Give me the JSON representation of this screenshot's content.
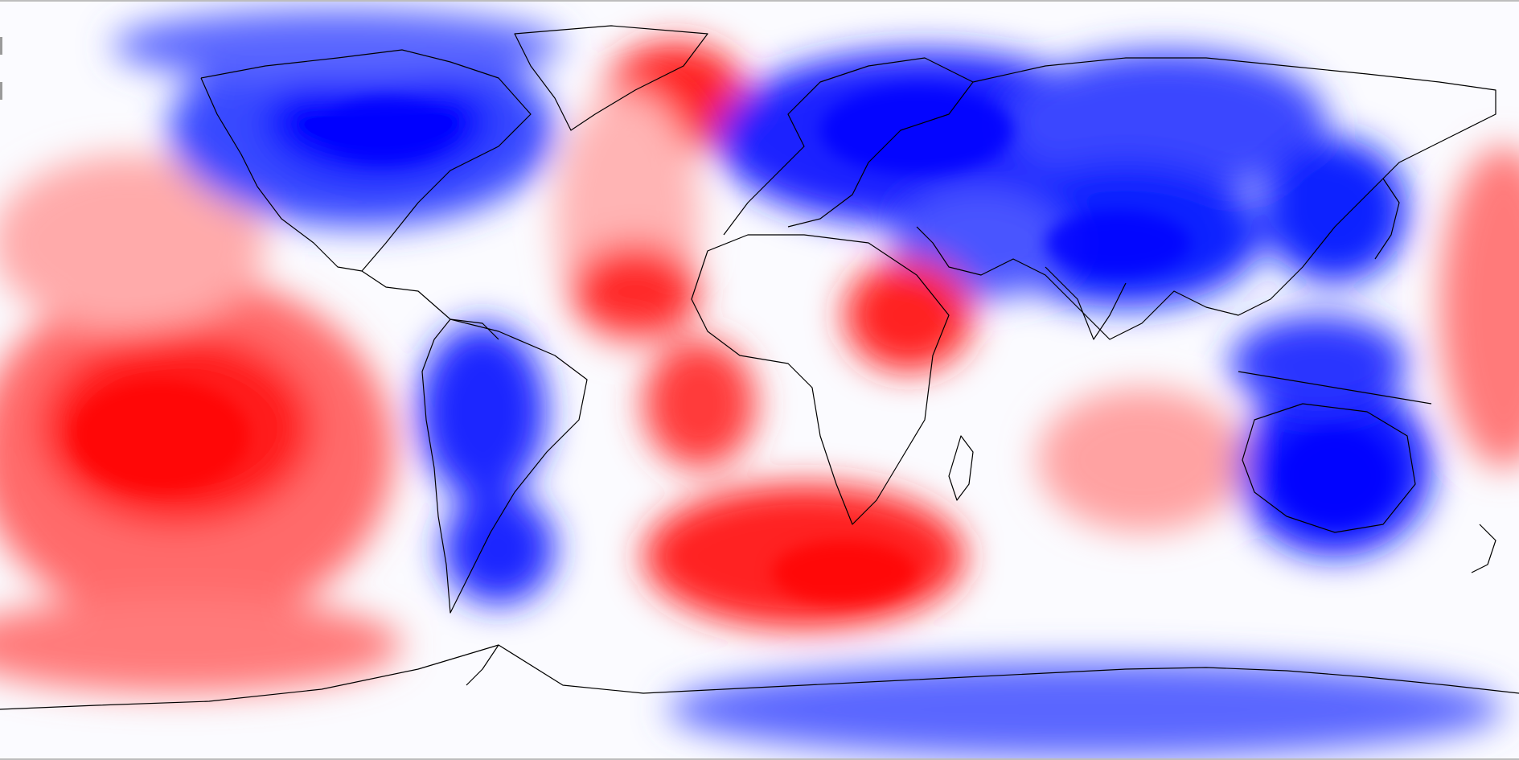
{
  "map": {
    "projection": "equirectangular",
    "layer": "anomaly-field",
    "colors": {
      "strong_positive": "#ff0000",
      "positive": "#ff7a7a",
      "weak_positive": "#ffd1d1",
      "neutral": "#ffffff",
      "weak_negative": "#d3d8ff",
      "negative": "#7480ff",
      "strong_negative": "#0000ff",
      "coastline": "#000000"
    },
    "icons": [
      "coastline-outline",
      "color-contours"
    ]
  }
}
